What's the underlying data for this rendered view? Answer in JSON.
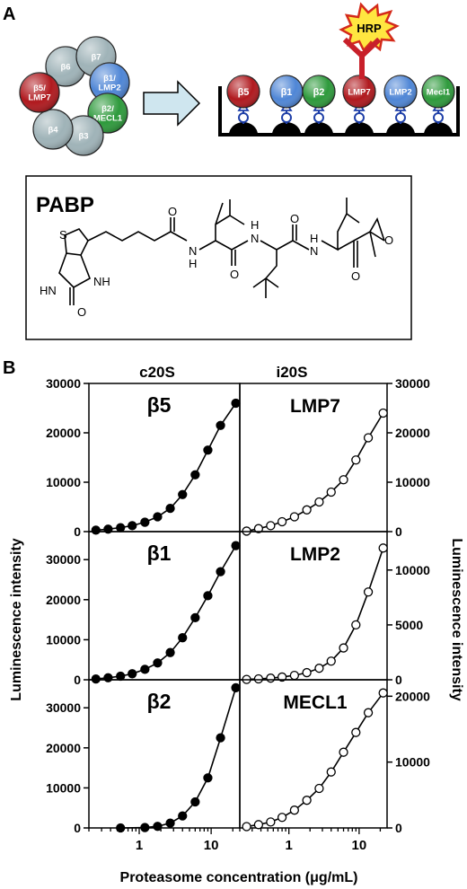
{
  "panel_a": {
    "label": "A",
    "ring": [
      {
        "text": "β6",
        "color": "#9fb3b8"
      },
      {
        "text": "β7",
        "color": "#9fb3b8"
      },
      {
        "text": "β1/\nLMP2",
        "color": "#4f86d6"
      },
      {
        "text": "β2/\nMECL1",
        "color": "#2e9a3c"
      },
      {
        "text": "β3",
        "color": "#9fb3b8"
      },
      {
        "text": "β4",
        "color": "#9fb3b8"
      },
      {
        "text": "β5/\nLMP7",
        "color": "#b0191e"
      }
    ],
    "plate_spheres": [
      {
        "text": "β5",
        "color": "#b0191e"
      },
      {
        "text": "β1",
        "color": "#4f86d6"
      },
      {
        "text": "β2",
        "color": "#2e9a3c"
      },
      {
        "text": "LMP7",
        "color": "#b0191e"
      },
      {
        "text": "LMP2",
        "color": "#4f86d6"
      },
      {
        "text": "Mecl1",
        "color": "#2e9a3c"
      }
    ],
    "hrp_label": "HRP",
    "compound_name": "PABP",
    "structure_labels": {
      "s": "S",
      "o1": "O",
      "o2": "O",
      "o3": "O",
      "o4": "O",
      "o5": "O",
      "o_urea": "O",
      "hn": "HN",
      "nh_ring": "NH",
      "nh1": "H",
      "nh1n": "N",
      "nh2": "N",
      "nh2h": "H",
      "nh3": "N",
      "nh3h": "H"
    }
  },
  "panel_b": {
    "label": "B",
    "col_left": "c20S",
    "col_right": "i20S",
    "ylabel_left": "Luminescence intensity",
    "ylabel_right": "Luminescence intensity",
    "xlabel": "Proteasome concentration (μg/mL)"
  },
  "chart_data": [
    {
      "type": "line",
      "title": "β5",
      "marker": "filled",
      "x_scale": "log",
      "xlim": [
        0.2,
        25
      ],
      "ylim": [
        0,
        30000
      ],
      "yticks": [
        0,
        10000,
        20000,
        30000
      ],
      "x": [
        0.25,
        0.37,
        0.55,
        0.8,
        1.2,
        1.8,
        2.7,
        4.0,
        6.0,
        9.0,
        13.5,
        22
      ],
      "y": [
        300,
        500,
        800,
        1200,
        1900,
        3000,
        4700,
        7500,
        11500,
        16500,
        21500,
        26000
      ]
    },
    {
      "type": "line",
      "title": "LMP7",
      "marker": "open",
      "x_scale": "log",
      "xlim": [
        0.2,
        25
      ],
      "ylim": [
        0,
        30000
      ],
      "yticks": [
        0,
        10000,
        20000,
        30000
      ],
      "x": [
        0.25,
        0.37,
        0.55,
        0.8,
        1.2,
        1.8,
        2.7,
        4.0,
        6.0,
        9.0,
        13.5,
        22
      ],
      "y": [
        100,
        600,
        1200,
        2000,
        3000,
        4400,
        6000,
        8000,
        10500,
        14500,
        19000,
        24000
      ]
    },
    {
      "type": "line",
      "title": "β1",
      "marker": "filled",
      "x_scale": "log",
      "xlim": [
        0.2,
        25
      ],
      "ylim": [
        0,
        37000
      ],
      "yticks": [
        0,
        10000,
        20000,
        30000
      ],
      "x": [
        0.25,
        0.37,
        0.55,
        0.8,
        1.2,
        1.8,
        2.7,
        4.0,
        6.0,
        9.0,
        13.5,
        22
      ],
      "y": [
        200,
        500,
        900,
        1500,
        2600,
        4200,
        6800,
        10500,
        15500,
        21000,
        27000,
        33500
      ]
    },
    {
      "type": "line",
      "title": "LMP2",
      "marker": "open",
      "x_scale": "log",
      "xlim": [
        0.2,
        25
      ],
      "ylim": [
        0,
        13500
      ],
      "yticks": [
        0,
        5000,
        10000
      ],
      "x": [
        0.25,
        0.37,
        0.55,
        0.8,
        1.2,
        1.8,
        2.7,
        4.0,
        6.0,
        9.0,
        13.5,
        22
      ],
      "y": [
        30,
        80,
        150,
        250,
        400,
        650,
        1050,
        1700,
        2900,
        5000,
        8000,
        12000
      ]
    },
    {
      "type": "line",
      "title": "β2",
      "marker": "filled",
      "x_scale": "log",
      "xlim": [
        0.2,
        25
      ],
      "ylim": [
        0,
        37000
      ],
      "yticks": [
        0,
        10000,
        20000,
        30000
      ],
      "x": [
        0.55,
        1.2,
        1.8,
        2.7,
        4.0,
        6.0,
        9.0,
        13.5,
        22
      ],
      "y": [
        0,
        100,
        400,
        1200,
        3000,
        6500,
        12500,
        22500,
        35000
      ]
    },
    {
      "type": "line",
      "title": "MECL1",
      "marker": "open",
      "x_scale": "log",
      "xlim": [
        0.2,
        25
      ],
      "ylim": [
        0,
        22500
      ],
      "yticks": [
        0,
        10000,
        20000
      ],
      "x": [
        0.25,
        0.37,
        0.55,
        0.8,
        1.2,
        1.8,
        2.7,
        4.0,
        6.0,
        9.0,
        13.5,
        22
      ],
      "y": [
        200,
        500,
        900,
        1600,
        2700,
        4200,
        6000,
        8500,
        11500,
        14500,
        17500,
        20500
      ]
    }
  ]
}
